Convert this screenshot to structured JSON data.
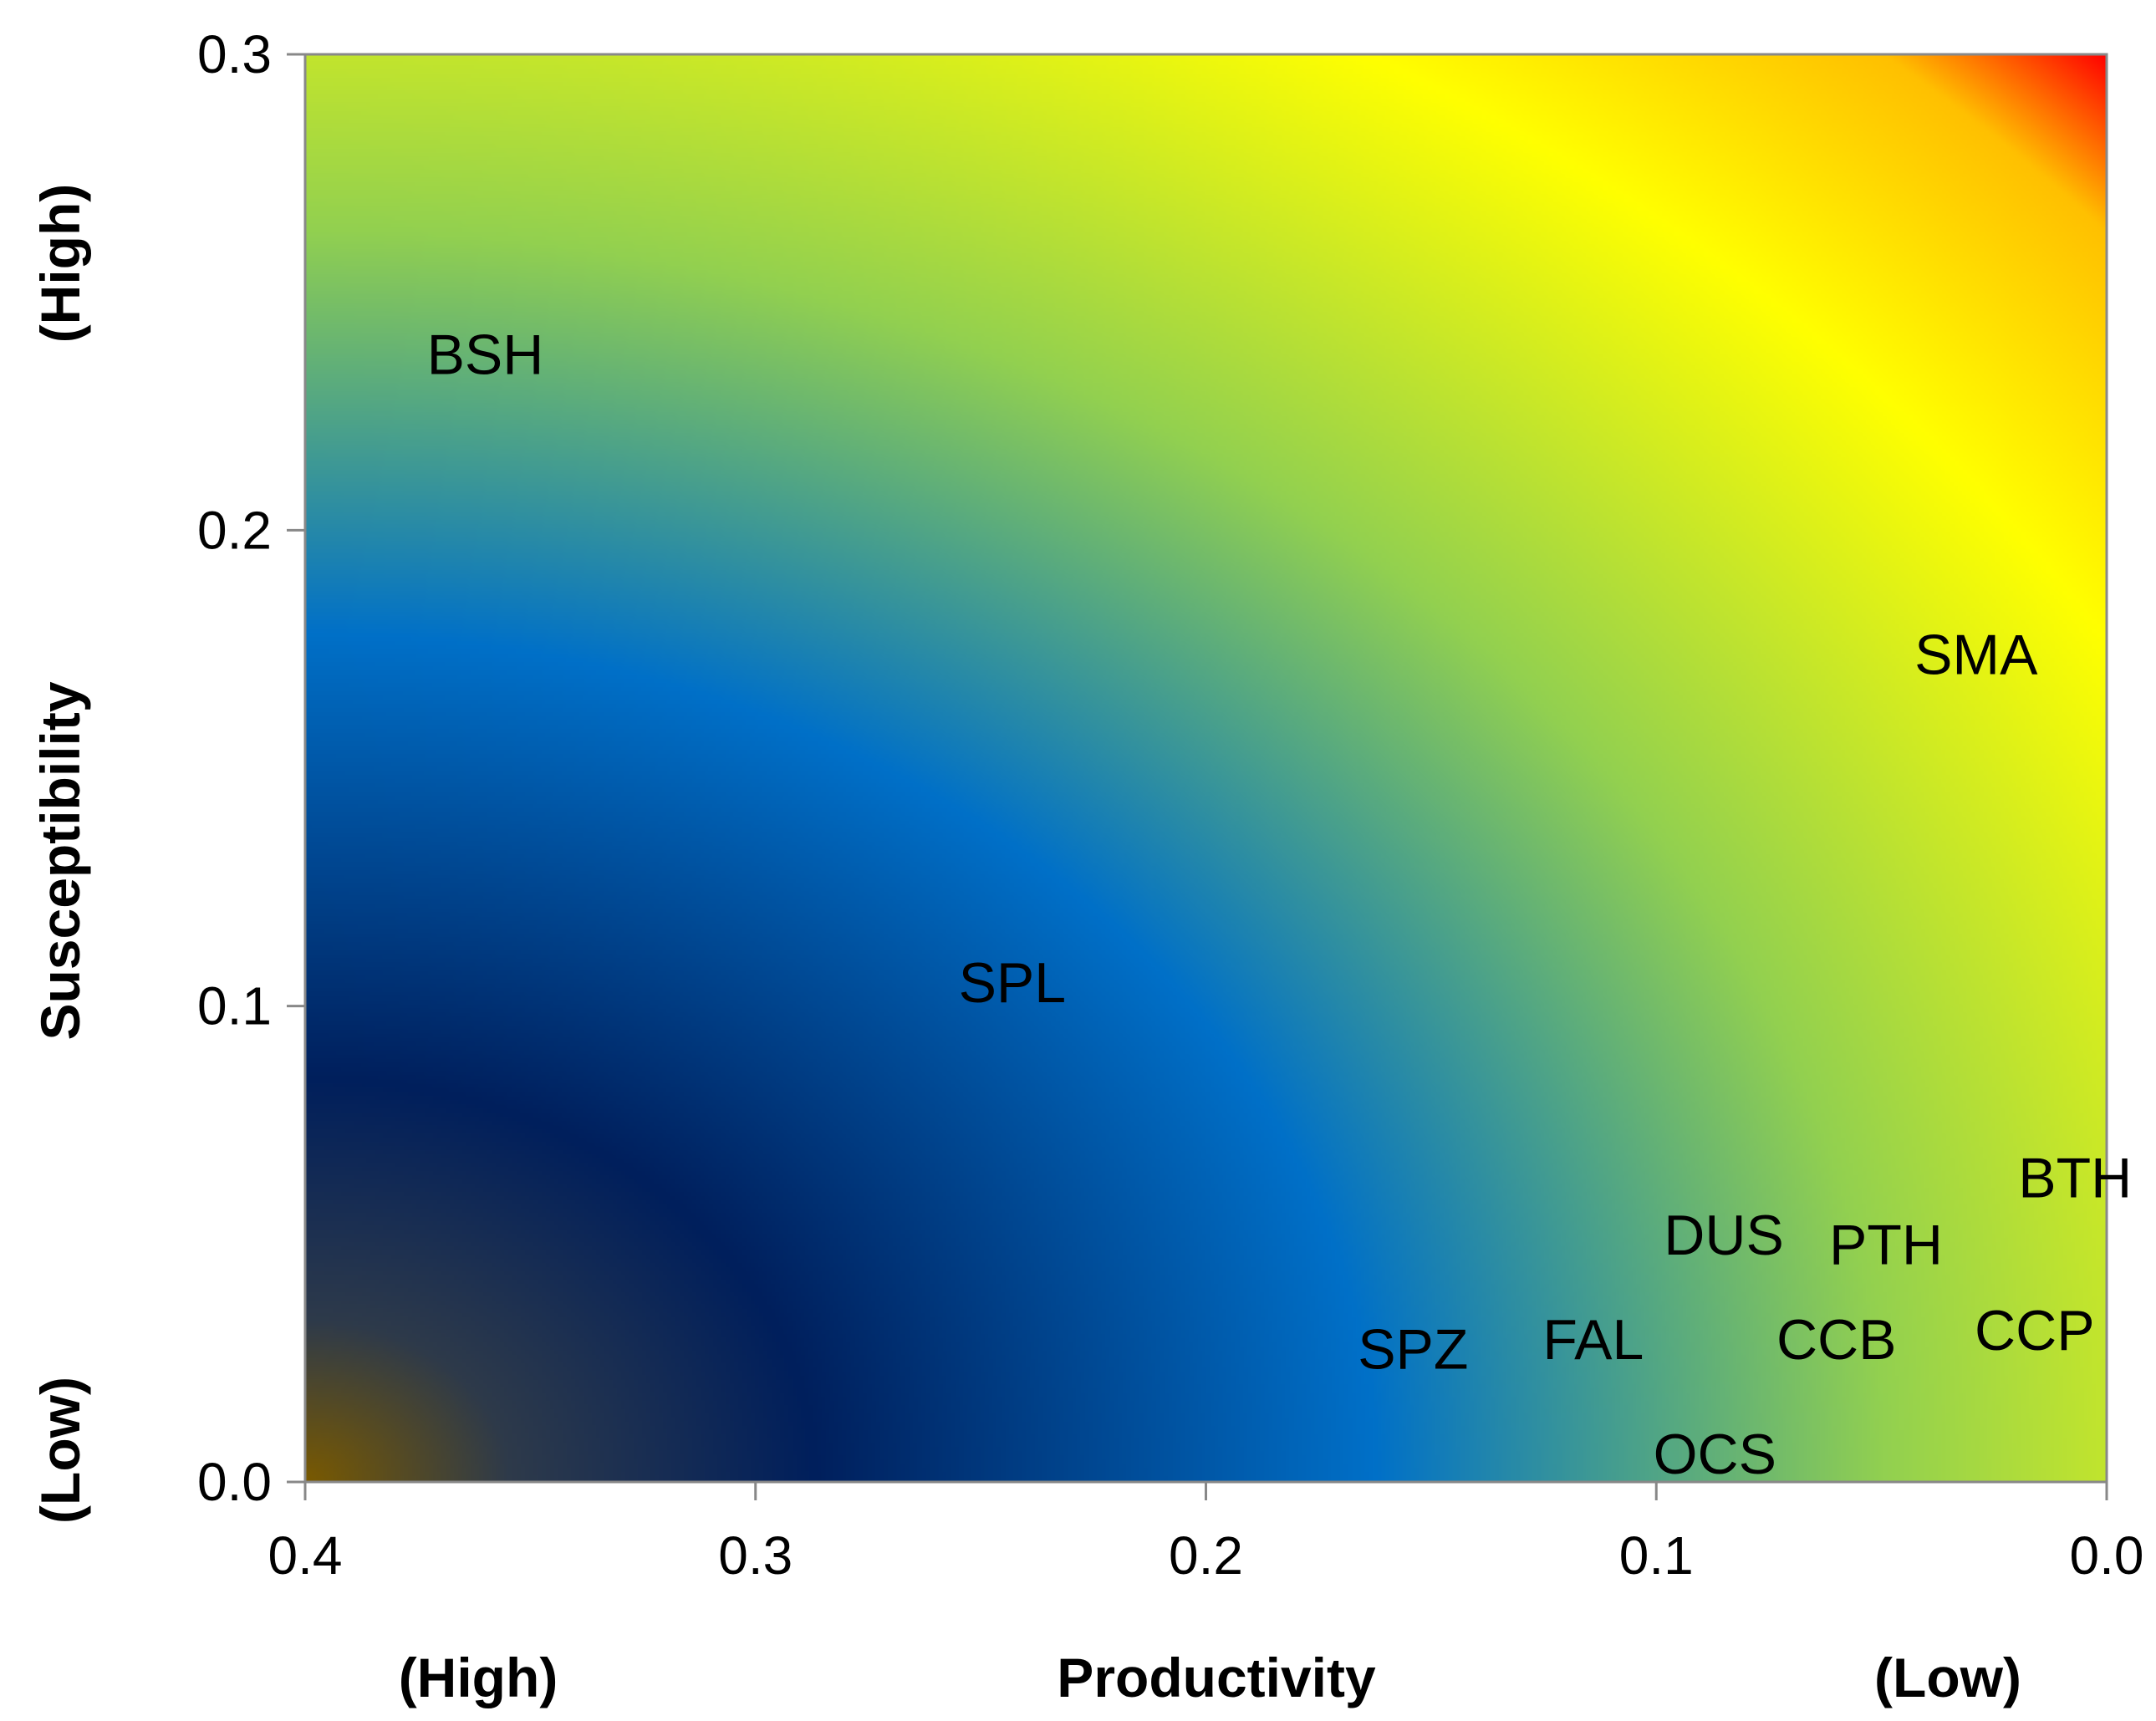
{
  "chart_data": {
    "type": "heatmap",
    "title": "",
    "xlabel": "Productivity",
    "ylabel": "Susceptibility",
    "x_low_label": "(Low)",
    "x_high_label": "(High)",
    "y_low_label": "(Low)",
    "y_high_label": "(High)",
    "xlim": [
      0.4,
      0.0
    ],
    "ylim": [
      0.0,
      0.3
    ],
    "xticks": [
      "0.4",
      "0.3",
      "0.2",
      "0.1",
      "0.0"
    ],
    "yticks": [
      "0.0",
      "0.1",
      "0.2",
      "0.3"
    ],
    "grid": false,
    "color_scale": {
      "stops": [
        {
          "risk": 0.0,
          "color": "#7a5a00"
        },
        {
          "risk": 0.08,
          "color": "#2e3a4a"
        },
        {
          "risk": 0.2,
          "color": "#001f5c"
        },
        {
          "risk": 0.42,
          "color": "#0070c8"
        },
        {
          "risk": 0.62,
          "color": "#92d050"
        },
        {
          "risk": 0.82,
          "color": "#ffff00"
        },
        {
          "risk": 0.94,
          "color": "#ffc000"
        },
        {
          "risk": 1.0,
          "color": "#ff0000"
        }
      ]
    },
    "points": [
      {
        "label": "BSH",
        "x": 0.36,
        "y": 0.237
      },
      {
        "label": "SMA",
        "x": 0.029,
        "y": 0.174
      },
      {
        "label": "SPL",
        "x": 0.243,
        "y": 0.105
      },
      {
        "label": "BTH",
        "x": 0.007,
        "y": 0.064
      },
      {
        "label": "DUS",
        "x": 0.085,
        "y": 0.052
      },
      {
        "label": "PTH",
        "x": 0.049,
        "y": 0.05
      },
      {
        "label": "CCP",
        "x": 0.016,
        "y": 0.032
      },
      {
        "label": "CCB",
        "x": 0.06,
        "y": 0.03
      },
      {
        "label": "FAL",
        "x": 0.114,
        "y": 0.03
      },
      {
        "label": "SPZ",
        "x": 0.154,
        "y": 0.028
      },
      {
        "label": "OCS",
        "x": 0.087,
        "y": 0.006
      }
    ]
  }
}
